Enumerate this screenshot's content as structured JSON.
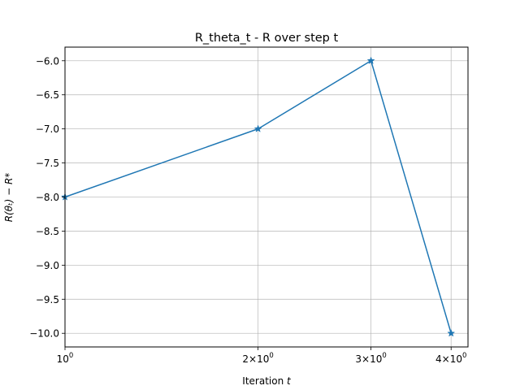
{
  "chart_data": {
    "type": "line",
    "title": "R_theta_t - R over step t",
    "xlabel": {
      "prefix": "Iteration ",
      "var": "t"
    },
    "ylabel": {
      "display": "R(θₜ) − R*"
    },
    "x_scale": "log",
    "xlim": [
      1,
      4.25
    ],
    "ylim": [
      -10.2,
      -5.8
    ],
    "grid": true,
    "series": [
      {
        "x": [
          1,
          2,
          3,
          4
        ],
        "y": [
          -8.0,
          -7.0,
          -6.0,
          -10.0
        ],
        "color": "#1f77b4",
        "marker": "star"
      }
    ],
    "x_ticks": [
      {
        "value": 1,
        "mantissa": "",
        "base": "10",
        "exp": "0"
      },
      {
        "value": 2,
        "mantissa": "2×",
        "base": "10",
        "exp": "0"
      },
      {
        "value": 3,
        "mantissa": "3×",
        "base": "10",
        "exp": "0"
      },
      {
        "value": 4,
        "mantissa": "4×",
        "base": "10",
        "exp": "0"
      }
    ],
    "y_ticks": [
      {
        "value": -6.0,
        "label": "−6.0"
      },
      {
        "value": -6.5,
        "label": "−6.5"
      },
      {
        "value": -7.0,
        "label": "−7.0"
      },
      {
        "value": -7.5,
        "label": "−7.5"
      },
      {
        "value": -8.0,
        "label": "−8.0"
      },
      {
        "value": -8.5,
        "label": "−8.5"
      },
      {
        "value": -9.0,
        "label": "−9.0"
      },
      {
        "value": -9.5,
        "label": "−9.5"
      },
      {
        "value": -10.0,
        "label": "−10.0"
      }
    ]
  }
}
